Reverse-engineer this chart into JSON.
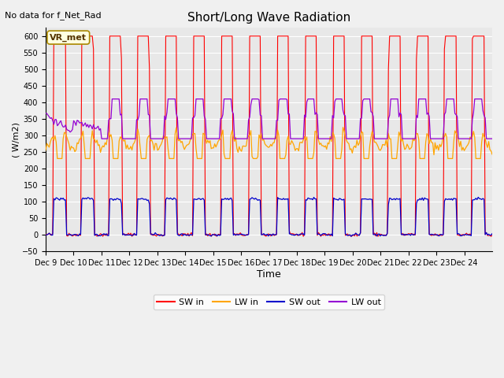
{
  "title": "Short/Long Wave Radiation",
  "xlabel": "Time",
  "ylabel": "( W/m2)",
  "top_left_text": "No data for f_Net_Rad",
  "box_label": "VR_met",
  "ylim": [
    -50,
    625
  ],
  "yticks": [
    -50,
    0,
    50,
    100,
    150,
    200,
    250,
    300,
    350,
    400,
    450,
    500,
    550,
    600
  ],
  "xtick_labels": [
    "Dec 9",
    "Dec 10",
    "Dec 11",
    "Dec 12",
    "Dec 13",
    "Dec 14",
    "Dec 15",
    "Dec 16",
    "Dec 17",
    "Dec 18",
    "Dec 19",
    "Dec 20",
    "Dec 21",
    "Dec 22",
    "Dec 23",
    "Dec 24"
  ],
  "colors": {
    "SW_in": "#ff0000",
    "LW_in": "#ffa500",
    "SW_out": "#0000cc",
    "LW_out": "#9400d3"
  },
  "legend_labels": [
    "SW in",
    "LW in",
    "SW out",
    "LW out"
  ],
  "axes_bg": "#e8e8e8",
  "grid_color": "#ffffff",
  "n_days": 16
}
